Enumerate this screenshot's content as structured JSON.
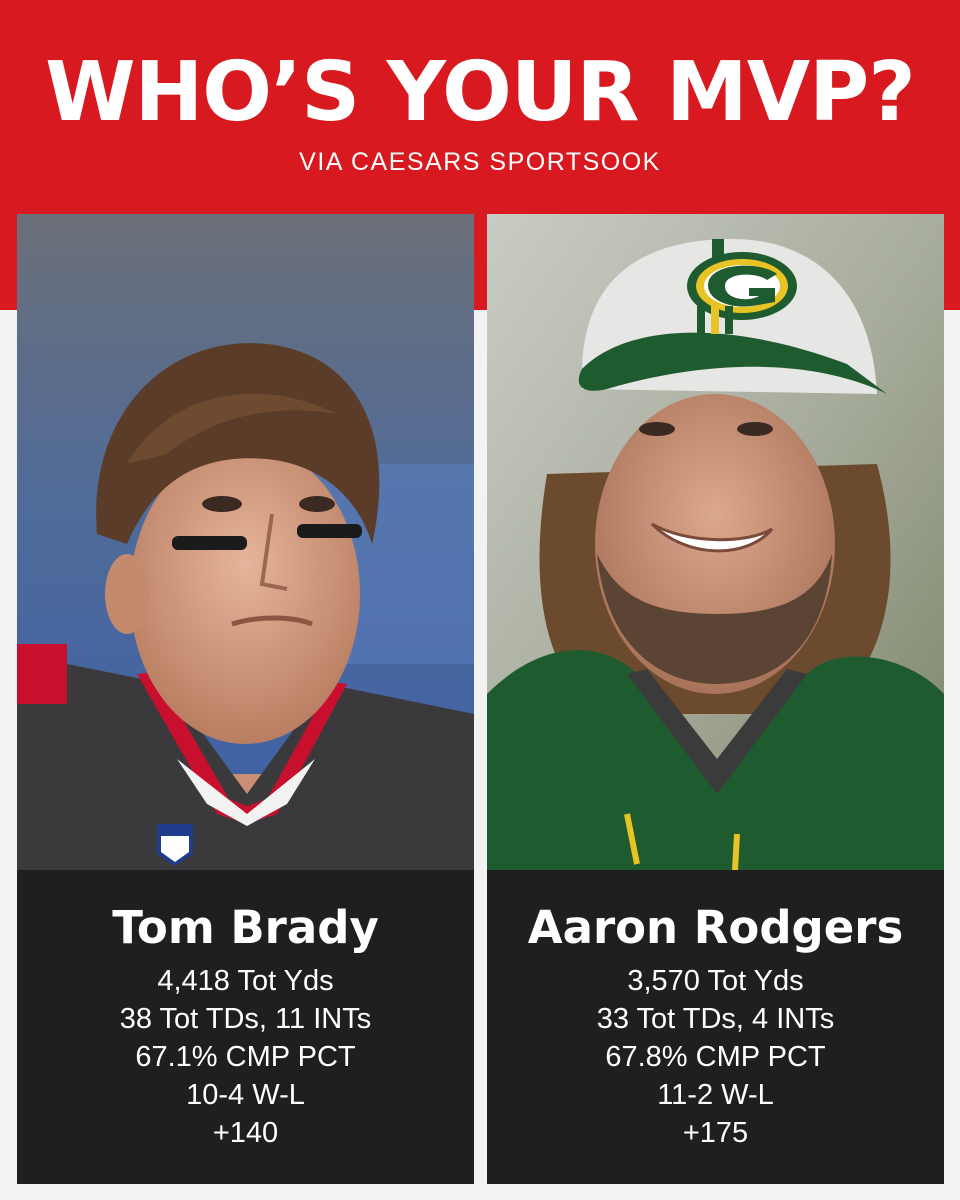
{
  "header": {
    "title": "WHO’S YOUR MVP?",
    "subtitle": "VIA CAESARS SPORTSOOK",
    "accent_color": "#d8191f"
  },
  "players": [
    {
      "name": "Tom Brady",
      "stats": [
        "4,418 Tot Yds",
        "38 Tot TDs, 11 INTs",
        "67.1% CMP PCT",
        "10-4 W-L",
        "+140"
      ],
      "jersey_color": "#3a3a3c",
      "trim_color": "#c8102e"
    },
    {
      "name": "Aaron Rodgers",
      "stats": [
        "3,570 Tot Yds",
        "33 Tot TDs, 4 INTs",
        "67.8% CMP PCT",
        "11-2 W-L",
        "+175"
      ],
      "jersey_color": "#1e5b2f",
      "trim_color": "#e8c325"
    }
  ]
}
